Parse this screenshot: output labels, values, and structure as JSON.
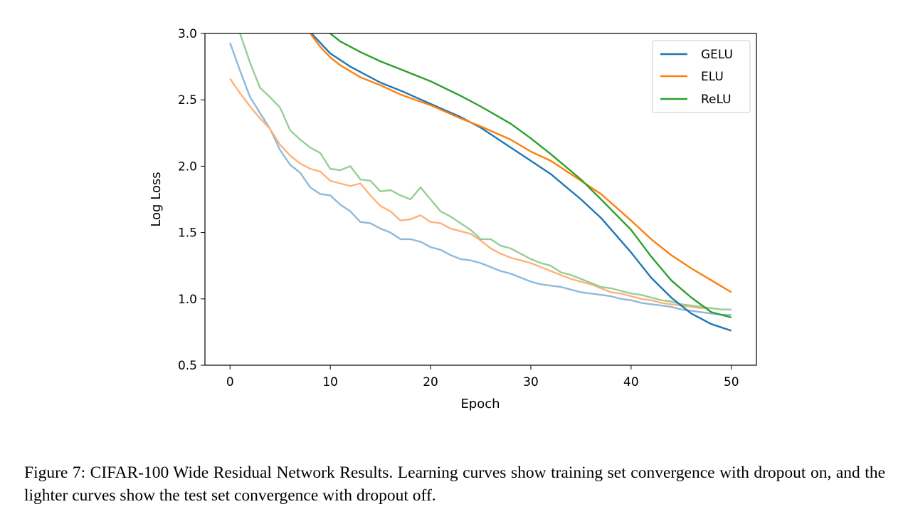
{
  "caption": "Figure 7: CIFAR-100 Wide Residual Network Results. Learning curves show training set convergence with dropout on, and the lighter curves show the test set convergence with dropout off.",
  "chart_data": {
    "type": "line",
    "title": "",
    "xlabel": "Epoch",
    "ylabel": "Log Loss",
    "xlim": [
      -2.5,
      52.5
    ],
    "ylim": [
      0.5,
      3.0
    ],
    "xticks": [
      0,
      10,
      20,
      30,
      40,
      50
    ],
    "yticks": [
      0.5,
      1.0,
      1.5,
      2.0,
      2.5,
      3.0
    ],
    "ytick_labels": [
      "0.5",
      "1.0",
      "1.5",
      "2.0",
      "2.5",
      "3.0"
    ],
    "grid": false,
    "legend_position": "top-right",
    "series": [
      {
        "name": "GELU",
        "role": "train",
        "color": "#1f77b4",
        "x": [
          7,
          8,
          9,
          10,
          11,
          12,
          13,
          15,
          17,
          20,
          23,
          25,
          28,
          30,
          32,
          35,
          37,
          40,
          42,
          44,
          46,
          48,
          50
        ],
        "y": [
          3.1,
          3.01,
          2.93,
          2.85,
          2.8,
          2.75,
          2.71,
          2.63,
          2.57,
          2.47,
          2.37,
          2.29,
          2.14,
          2.04,
          1.94,
          1.75,
          1.61,
          1.35,
          1.16,
          1.01,
          0.89,
          0.81,
          0.76
        ]
      },
      {
        "name": "ELU",
        "role": "train",
        "color": "#ff7f0e",
        "x": [
          7,
          8,
          9,
          10,
          11,
          13,
          15,
          17,
          20,
          23,
          25,
          28,
          30,
          32,
          35,
          37,
          40,
          42,
          44,
          46,
          48,
          50
        ],
        "y": [
          3.1,
          3.0,
          2.9,
          2.82,
          2.76,
          2.67,
          2.61,
          2.54,
          2.46,
          2.36,
          2.3,
          2.2,
          2.11,
          2.04,
          1.89,
          1.79,
          1.59,
          1.45,
          1.33,
          1.23,
          1.14,
          1.05
        ]
      },
      {
        "name": "ReLU",
        "role": "train",
        "color": "#2ca02c",
        "x": [
          9,
          10,
          11,
          12,
          13,
          15,
          17,
          20,
          23,
          25,
          28,
          30,
          32,
          35,
          37,
          40,
          42,
          44,
          46,
          48,
          50
        ],
        "y": [
          3.08,
          3.0,
          2.94,
          2.9,
          2.86,
          2.79,
          2.73,
          2.64,
          2.53,
          2.45,
          2.32,
          2.21,
          2.09,
          1.9,
          1.75,
          1.52,
          1.32,
          1.14,
          1.01,
          0.9,
          0.86
        ]
      },
      {
        "role": "test",
        "of": "GELU",
        "color": "#8fb9dc",
        "x": [
          0,
          1,
          2,
          3,
          4,
          5,
          6,
          7,
          8,
          9,
          10,
          11,
          12,
          13,
          14,
          15,
          16,
          17,
          18,
          19,
          20,
          21,
          22,
          23,
          24,
          25,
          26,
          27,
          28,
          29,
          30,
          31,
          32,
          33,
          34,
          35,
          36,
          37,
          38,
          39,
          40,
          41,
          42,
          43,
          44,
          45,
          46,
          47,
          48,
          49,
          50
        ],
        "y": [
          2.93,
          2.72,
          2.52,
          2.4,
          2.28,
          2.12,
          2.01,
          1.95,
          1.84,
          1.79,
          1.78,
          1.71,
          1.66,
          1.58,
          1.57,
          1.53,
          1.5,
          1.45,
          1.45,
          1.43,
          1.39,
          1.37,
          1.33,
          1.3,
          1.29,
          1.27,
          1.24,
          1.21,
          1.19,
          1.16,
          1.13,
          1.11,
          1.1,
          1.09,
          1.07,
          1.05,
          1.04,
          1.03,
          1.02,
          1.0,
          0.99,
          0.97,
          0.96,
          0.95,
          0.94,
          0.92,
          0.91,
          0.9,
          0.89,
          0.88,
          0.88
        ]
      },
      {
        "role": "test",
        "of": "ELU",
        "color": "#ffb27a",
        "x": [
          0,
          1,
          2,
          3,
          4,
          5,
          6,
          7,
          8,
          9,
          10,
          11,
          12,
          13,
          14,
          15,
          16,
          17,
          18,
          19,
          20,
          21,
          22,
          23,
          24,
          25,
          26,
          27,
          28,
          29,
          30,
          31,
          32,
          33,
          34,
          35,
          36,
          37,
          38,
          39,
          40,
          41,
          42,
          43,
          44,
          45,
          46,
          47,
          48,
          49,
          50
        ],
        "y": [
          2.66,
          2.55,
          2.45,
          2.36,
          2.28,
          2.16,
          2.08,
          2.02,
          1.98,
          1.96,
          1.89,
          1.87,
          1.85,
          1.87,
          1.78,
          1.7,
          1.66,
          1.59,
          1.6,
          1.63,
          1.58,
          1.57,
          1.53,
          1.51,
          1.49,
          1.44,
          1.38,
          1.34,
          1.31,
          1.29,
          1.27,
          1.24,
          1.21,
          1.18,
          1.15,
          1.13,
          1.11,
          1.08,
          1.05,
          1.04,
          1.02,
          1.0,
          0.99,
          0.97,
          0.96,
          0.95,
          0.94,
          0.93,
          0.93,
          0.92,
          0.92
        ]
      },
      {
        "role": "test",
        "of": "ReLU",
        "color": "#95cf95",
        "x": [
          0,
          1,
          2,
          3,
          4,
          5,
          6,
          7,
          8,
          9,
          10,
          11,
          12,
          13,
          14,
          15,
          16,
          17,
          18,
          19,
          20,
          21,
          22,
          23,
          24,
          25,
          26,
          27,
          28,
          29,
          30,
          31,
          32,
          33,
          34,
          35,
          36,
          37,
          38,
          39,
          40,
          41,
          42,
          43,
          44,
          45,
          46,
          47,
          48,
          49,
          50
        ],
        "y": [
          3.2,
          3.0,
          2.78,
          2.59,
          2.52,
          2.44,
          2.27,
          2.2,
          2.14,
          2.1,
          1.98,
          1.97,
          2.0,
          1.9,
          1.89,
          1.81,
          1.82,
          1.78,
          1.75,
          1.84,
          1.75,
          1.66,
          1.62,
          1.57,
          1.52,
          1.45,
          1.45,
          1.4,
          1.38,
          1.34,
          1.3,
          1.27,
          1.25,
          1.2,
          1.18,
          1.15,
          1.12,
          1.09,
          1.08,
          1.06,
          1.04,
          1.03,
          1.01,
          0.99,
          0.98,
          0.96,
          0.95,
          0.94,
          0.93,
          0.92,
          0.92
        ]
      }
    ]
  }
}
